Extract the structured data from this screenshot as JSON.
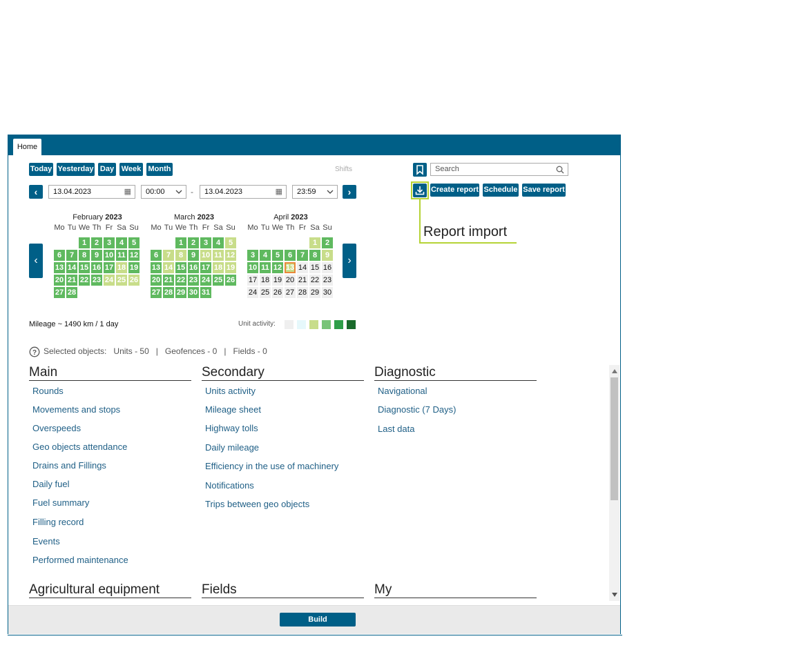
{
  "tabs": {
    "home": "Home"
  },
  "period_buttons": [
    "Today",
    "Yesterday",
    "Day",
    "Week",
    "Month"
  ],
  "shifts_label": "Shifts",
  "search": {
    "placeholder": "Search"
  },
  "from": {
    "date": "13.04.2023",
    "time": "00:00"
  },
  "separator": "-",
  "to": {
    "date": "13.04.2023",
    "time": "23:59"
  },
  "actions": {
    "create": "Create report",
    "schedule": "Schedule",
    "save": "Save report"
  },
  "annotation": "Report import",
  "calendar": {
    "dow": [
      "Mo",
      "Tu",
      "We",
      "Th",
      "Fr",
      "Sa",
      "Su"
    ],
    "months": [
      {
        "name": "February",
        "year": "2023",
        "offset": 2,
        "days": 28,
        "activity": [
          1,
          1,
          1,
          1,
          1,
          1,
          1,
          1,
          1,
          1,
          1,
          1,
          1,
          1,
          1,
          1,
          1,
          2,
          1,
          1,
          1,
          1,
          1,
          2,
          2,
          2,
          1,
          1
        ]
      },
      {
        "name": "March",
        "year": "2023",
        "offset": 2,
        "days": 31,
        "activity": [
          1,
          1,
          1,
          1,
          2,
          1,
          2,
          2,
          1,
          2,
          2,
          2,
          1,
          2,
          1,
          1,
          1,
          2,
          2,
          1,
          1,
          1,
          1,
          1,
          1,
          1,
          1,
          1,
          1,
          1,
          1
        ]
      },
      {
        "name": "April",
        "year": "2023",
        "offset": 5,
        "days": 30,
        "activity": [
          2,
          1,
          1,
          1,
          1,
          1,
          1,
          1,
          2,
          1,
          1,
          1,
          3,
          0,
          0,
          0,
          0,
          0,
          0,
          0,
          0,
          0,
          0,
          0,
          0,
          0,
          0,
          0,
          0,
          0
        ]
      }
    ]
  },
  "mileage": "Mileage ~ 1490 km / 1 day",
  "unit_activity_label": "Unit activity:",
  "legend_colors": [
    "#efefef",
    "#e6f8fb",
    "#c8dd8a",
    "#78c478",
    "#2e9e48",
    "#1a6a2b"
  ],
  "selected": {
    "label": "Selected objects:",
    "units": "Units - 50",
    "geofences": "Geofences - 0",
    "fields": "Fields - 0",
    "sep": "|"
  },
  "sections": {
    "main": {
      "title": "Main",
      "items": [
        "Rounds",
        "Movements and stops",
        "Overspeeds",
        "Geo objects attendance",
        "Drains and Fillings",
        "Daily fuel",
        "Fuel summary",
        "Filling record",
        "Events",
        "Performed maintenance"
      ]
    },
    "secondary": {
      "title": "Secondary",
      "items": [
        "Units activity",
        "Mileage sheet",
        "Highway tolls",
        "Daily mileage",
        "Efficiency in the use of machinery",
        "Notifications",
        "Trips between geo objects"
      ]
    },
    "diagnostic": {
      "title": "Diagnostic",
      "items": [
        "Navigational",
        "Diagnostic (7 Days)",
        "Last data"
      ]
    },
    "agri": {
      "title": "Agricultural equipment"
    },
    "fields": {
      "title": "Fields"
    },
    "my": {
      "title": "My"
    }
  },
  "build_label": "Build"
}
